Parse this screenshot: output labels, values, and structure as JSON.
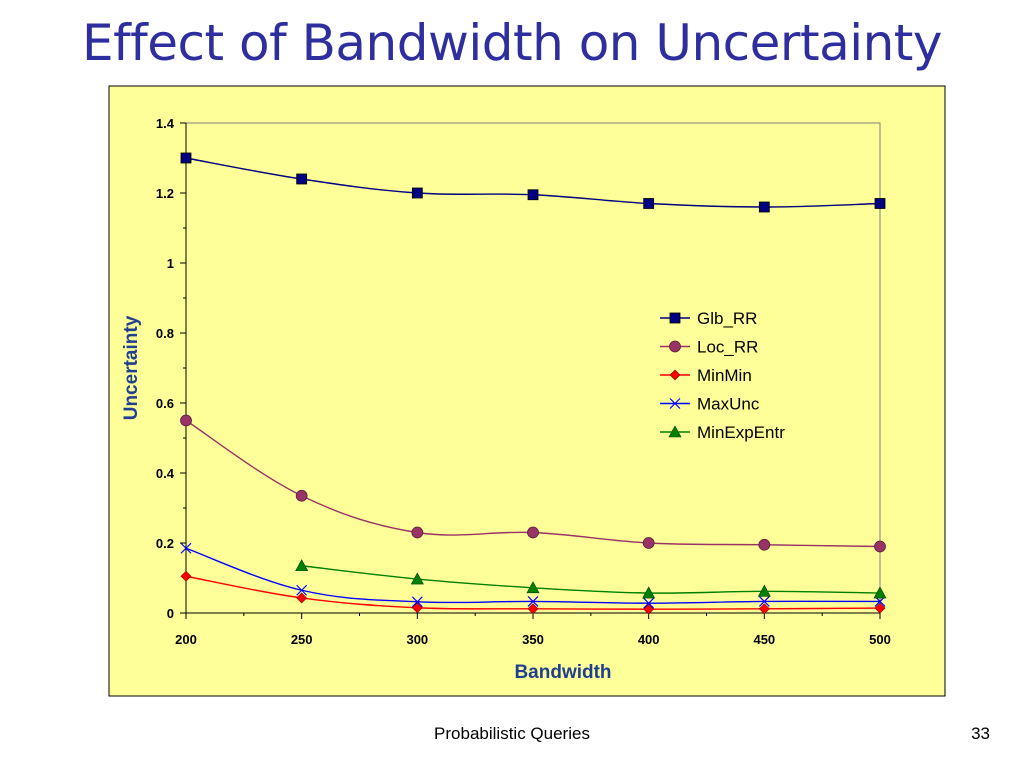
{
  "slide": {
    "title": "Effect of Bandwidth on Uncertainty",
    "footer": "Probabilistic Queries",
    "page_number": "33"
  },
  "chart_data": {
    "type": "line",
    "title": "",
    "xlabel": "Bandwidth",
    "ylabel": "Uncertainty",
    "x": [
      200,
      250,
      300,
      350,
      400,
      450,
      500
    ],
    "xticks": [
      "200",
      "250",
      "300",
      "350",
      "400",
      "450",
      "500"
    ],
    "yticks": [
      "0",
      "0.2",
      "0.4",
      "0.6",
      "0.8",
      "1",
      "1.2",
      "1.4"
    ],
    "xlim": [
      200,
      500
    ],
    "ylim": [
      0,
      1.4
    ],
    "grid": false,
    "legend_position": "right",
    "background_color": "#ffff99",
    "series": [
      {
        "name": "Glb_RR",
        "marker": "square",
        "color": "#000080",
        "values": [
          1.3,
          1.24,
          1.2,
          1.195,
          1.17,
          1.16,
          1.17
        ]
      },
      {
        "name": "Loc_RR",
        "marker": "circle",
        "color": "#993366",
        "values": [
          0.55,
          0.335,
          0.23,
          0.23,
          0.2,
          0.195,
          0.19
        ]
      },
      {
        "name": "MinMin",
        "marker": "diamond",
        "color": "#ff0000",
        "values": [
          0.105,
          0.043,
          0.015,
          0.012,
          0.011,
          0.012,
          0.014
        ]
      },
      {
        "name": "MaxUnc",
        "marker": "x",
        "color": "#0000ff",
        "values": [
          0.185,
          0.065,
          0.032,
          0.033,
          0.028,
          0.033,
          0.033
        ]
      },
      {
        "name": "MinExpEntr",
        "marker": "triangle",
        "color": "#008000",
        "values": [
          null,
          0.135,
          0.097,
          0.072,
          0.057,
          0.062,
          0.057
        ]
      }
    ]
  }
}
